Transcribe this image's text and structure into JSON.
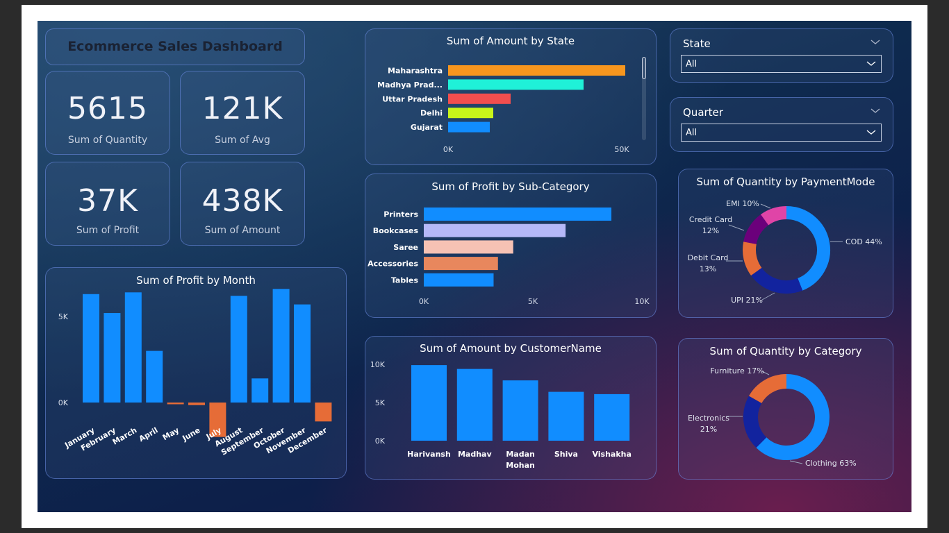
{
  "dashboard": {
    "title": "Ecommerce Sales Dashboard",
    "kpis": [
      {
        "value": "5615",
        "label": "Sum of Quantity"
      },
      {
        "value": "121K",
        "label": "Sum of Avg"
      },
      {
        "value": "37K",
        "label": "Sum of Profit"
      },
      {
        "value": "438K",
        "label": "Sum of Amount"
      }
    ]
  },
  "slicers": {
    "state": {
      "title": "State",
      "value": "All"
    },
    "quarter": {
      "title": "Quarter",
      "value": "All"
    }
  },
  "colors": {
    "blue": "#118dff",
    "orange_neg": "#e66c37",
    "text": "#ffffff"
  },
  "chart_data": [
    {
      "id": "amount_by_state",
      "type": "bar",
      "orientation": "horizontal",
      "title": "Sum of Amount by State",
      "categories": [
        "Maharashtra",
        "Madhya Prad...",
        "Uttar Pradesh",
        "Delhi",
        "Gujarat"
      ],
      "values": [
        51000,
        39000,
        18000,
        13000,
        12000
      ],
      "colors": [
        "#f7961e",
        "#1ff1d8",
        "#f24e4e",
        "#c8f51a",
        "#118dff"
      ],
      "xticks": [
        "0K",
        "50K"
      ],
      "xlim": [
        0,
        55000
      ]
    },
    {
      "id": "profit_by_subcategory",
      "type": "bar",
      "orientation": "horizontal",
      "title": "Sum of Profit by Sub-Category",
      "categories": [
        "Printers",
        "Bookcases",
        "Saree",
        "Accessories",
        "Tables"
      ],
      "values": [
        8600,
        6500,
        4100,
        3400,
        3200
      ],
      "colors": [
        "#118dff",
        "#b5b8f7",
        "#f6c2b4",
        "#e8875d",
        "#118dff"
      ],
      "xticks": [
        "0K",
        "5K",
        "10K"
      ],
      "xlim": [
        0,
        10000
      ]
    },
    {
      "id": "profit_by_month",
      "type": "bar",
      "title": "Sum of Profit by Month",
      "categories": [
        "January",
        "February",
        "March",
        "April",
        "May",
        "June",
        "July",
        "August",
        "September",
        "October",
        "November",
        "December"
      ],
      "values": [
        6300,
        5200,
        6400,
        3000,
        -100,
        -150,
        -2000,
        6200,
        1400,
        6600,
        5700,
        -1100
      ],
      "positive_color": "#118dff",
      "negative_color": "#e66c37",
      "yticks": [
        "0K",
        "5K"
      ],
      "ylim": [
        -2500,
        7500
      ]
    },
    {
      "id": "amount_by_customer",
      "type": "bar",
      "title": "Sum of Amount by CustomerName",
      "categories": [
        "Harivansh",
        "Madhav",
        "Madan Mohan",
        "Shiva",
        "Vishakha"
      ],
      "values": [
        9900,
        9400,
        7900,
        6400,
        6100
      ],
      "yticks": [
        "0K",
        "5K",
        "10K"
      ],
      "ylim": [
        0,
        10000
      ]
    },
    {
      "id": "quantity_by_paymentmode",
      "type": "pie",
      "donut": true,
      "title": "Sum of Quantity by PaymentMode",
      "slices": [
        {
          "label": "COD",
          "pct_label": "44%",
          "value": 44,
          "color": "#118dff"
        },
        {
          "label": "UPI",
          "pct_label": "21%",
          "value": 21,
          "color": "#12239e"
        },
        {
          "label": "Debit Card",
          "pct_label": "13%",
          "value": 13,
          "color": "#e66c37"
        },
        {
          "label": "Credit Card",
          "pct_label": "12%",
          "value": 12,
          "color": "#6b007b"
        },
        {
          "label": "EMI",
          "pct_label": "10%",
          "value": 10,
          "color": "#e044a7"
        }
      ]
    },
    {
      "id": "quantity_by_category",
      "type": "pie",
      "donut": true,
      "title": "Sum of Quantity by Category",
      "slices": [
        {
          "label": "Clothing",
          "pct_label": "63%",
          "value": 63,
          "color": "#118dff"
        },
        {
          "label": "Electronics",
          "pct_label": "21%",
          "value": 21,
          "color": "#12239e"
        },
        {
          "label": "Furniture",
          "pct_label": "17%",
          "value": 17,
          "color": "#e66c37"
        }
      ]
    }
  ]
}
